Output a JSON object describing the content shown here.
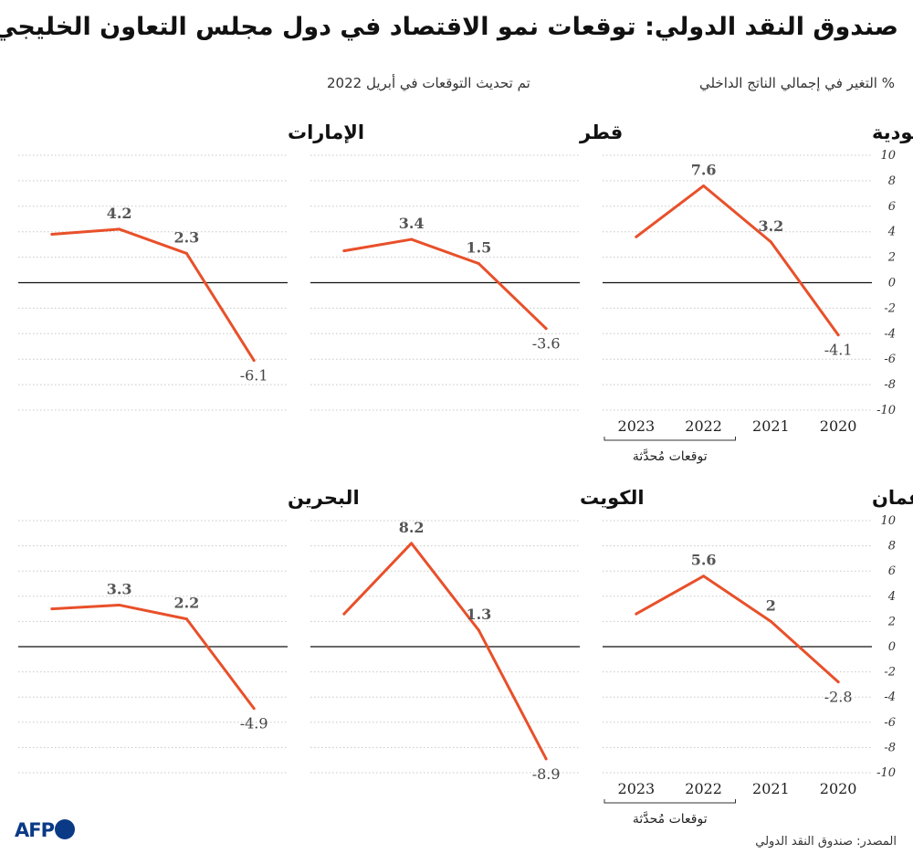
{
  "title": "صندوق النقد الدولي: توقعات نمو الاقتصاد في دول مجلس التعاون الخليجي",
  "subtitle_unit": "% التغير في إجمالي الناتج الداخلي",
  "subtitle_update": "تم تحديث التوقعات في أبريل 2022",
  "source": "المصدر: صندوق النقد الدولي",
  "logo_text": "AFP",
  "line_color": "#e8502a",
  "chart_data": {
    "type": "line",
    "x": [
      "2020",
      "2021",
      "2022",
      "2023"
    ],
    "forecast_label": "توقعات مُحدَّثة",
    "forecast_years": [
      "2022",
      "2023"
    ],
    "ylim": [
      -10,
      10
    ],
    "yticks": [
      "10",
      "8",
      "6",
      "4",
      "2",
      "0",
      "-2",
      "-4",
      "-6",
      "-8",
      "-10"
    ],
    "panels": [
      {
        "name": "السعودية",
        "values": [
          -4.1,
          3.2,
          7.6,
          3.6
        ],
        "labels": [
          "-4.1",
          "3.2",
          "7.6",
          ""
        ]
      },
      {
        "name": "قطر",
        "values": [
          -3.6,
          1.5,
          3.4,
          2.5
        ],
        "labels": [
          "-3.6",
          "1.5",
          "3.4",
          ""
        ]
      },
      {
        "name": "الإمارات",
        "values": [
          -6.1,
          2.3,
          4.2,
          3.8
        ],
        "labels": [
          "-6.1",
          "2.3",
          "4.2",
          ""
        ]
      },
      {
        "name": "عمان",
        "values": [
          -2.8,
          2,
          5.6,
          2.6
        ],
        "labels": [
          "-2.8",
          "2",
          "5.6",
          ""
        ]
      },
      {
        "name": "الكويت",
        "values": [
          -8.9,
          1.3,
          8.2,
          2.6
        ],
        "labels": [
          "-8.9",
          "1.3",
          "8.2",
          ""
        ]
      },
      {
        "name": "البحرين",
        "values": [
          -4.9,
          2.2,
          3.3,
          3.0
        ],
        "labels": [
          "-4.9",
          "2.2",
          "3.3",
          ""
        ]
      }
    ]
  }
}
